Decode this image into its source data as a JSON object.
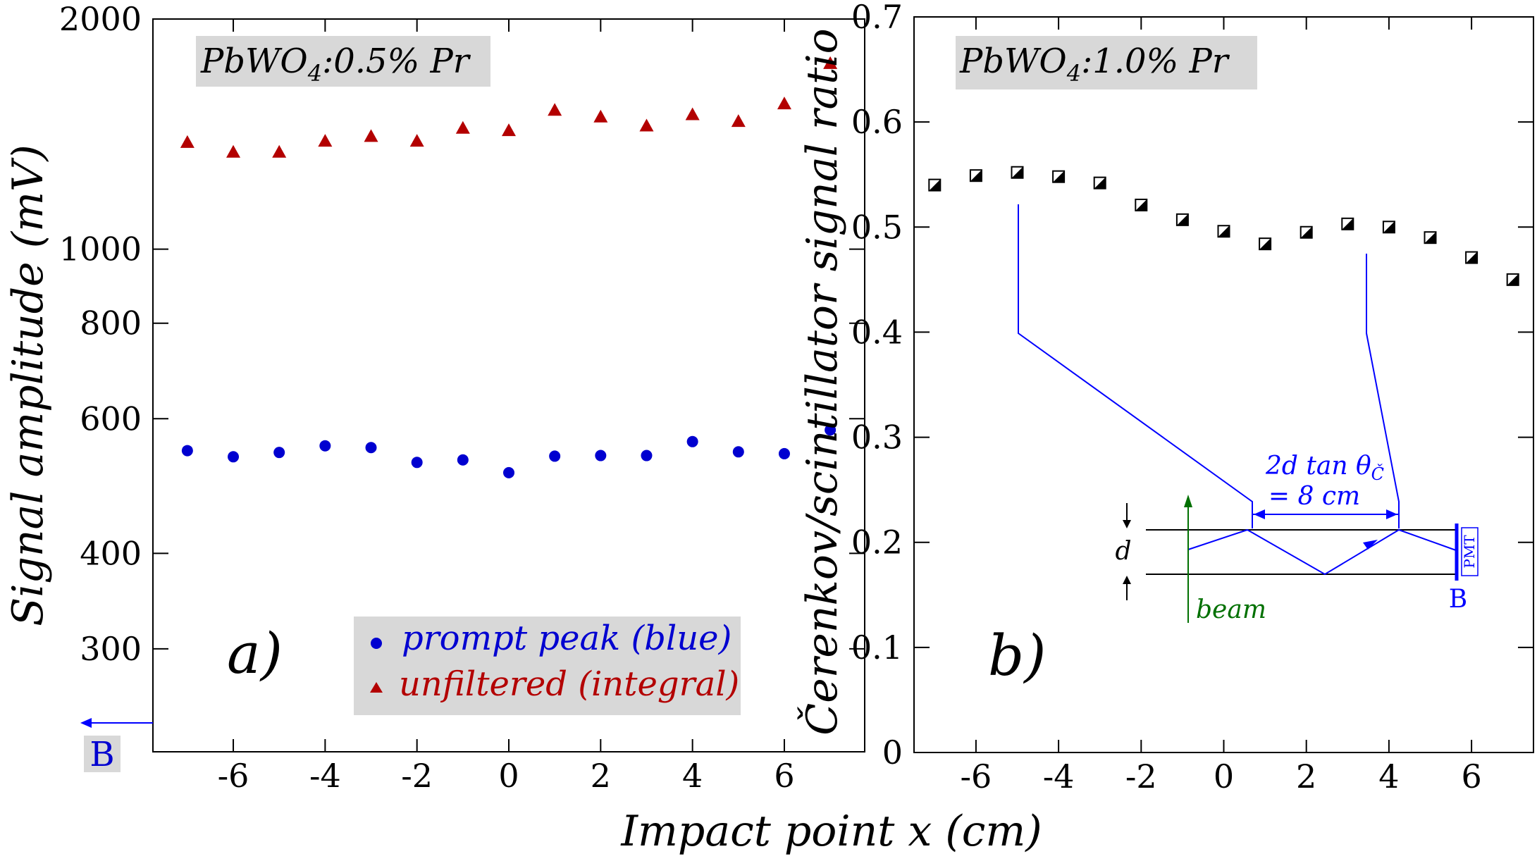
{
  "figure": {
    "xlabel": "Impact point x (cm)"
  },
  "chart_data": [
    {
      "type": "scatter",
      "panel_label": "a)",
      "sample_label": {
        "base": "PbWO",
        "sub": "4",
        "rest": ":0.5% Pr"
      },
      "ylabel": "Signal amplitude (mV)",
      "xlabel": "Impact point x (cm)",
      "yscale": "log",
      "xlim": [
        -7.75,
        7.75
      ],
      "ylim": [
        220,
        2000
      ],
      "xticks": [
        -6,
        -4,
        -2,
        0,
        2,
        4,
        6
      ],
      "xtick_labels": [
        "-6",
        "-4",
        "-2",
        "0",
        "2",
        "4",
        "6"
      ],
      "yticks": [
        300,
        400,
        600,
        800,
        1000,
        2000
      ],
      "ytick_labels": [
        "300",
        "400",
        "600",
        "800",
        "1000",
        "2000"
      ],
      "x": [
        -7,
        -6,
        -5,
        -4,
        -3,
        -2,
        -1,
        0,
        1,
        2,
        3,
        4,
        5,
        6,
        7
      ],
      "series": [
        {
          "name": "unfiltered (integral)",
          "marker": "triangle",
          "color": "#b30000",
          "values": [
            1380,
            1340,
            1340,
            1385,
            1405,
            1385,
            1440,
            1430,
            1520,
            1490,
            1450,
            1500,
            1470,
            1550,
            1750
          ]
        },
        {
          "name": "prompt peak (blue)",
          "marker": "circle",
          "color": "#0000d0",
          "values": [
            545,
            535,
            542,
            553,
            550,
            526,
            530,
            510,
            536,
            537,
            537,
            560,
            543,
            540,
            580
          ]
        }
      ],
      "legend_location": "bottom-right",
      "side_label": "B",
      "side_arrow_direction": "left"
    },
    {
      "type": "scatter",
      "panel_label": "b)",
      "sample_label": {
        "base": "PbWO",
        "sub": "4",
        "rest": ":1.0% Pr"
      },
      "ylabel": "Čerenkov/scintillator signal ratio",
      "xlabel": "Impact point x (cm)",
      "xlim": [
        -7.5,
        7.5
      ],
      "ylim": [
        0,
        0.7
      ],
      "xticks": [
        -6,
        -4,
        -2,
        0,
        2,
        4,
        6
      ],
      "xtick_labels": [
        "-6",
        "-4",
        "-2",
        "0",
        "2",
        "4",
        "6"
      ],
      "yticks": [
        0,
        0.1,
        0.2,
        0.3,
        0.4,
        0.5,
        0.6,
        0.7
      ],
      "ytick_labels": [
        "0",
        "0.1",
        "0.2",
        "0.3",
        "0.4",
        "0.5",
        "0.6",
        "0.7"
      ],
      "x": [
        -7,
        -6,
        -5,
        -4,
        -3,
        -2,
        -1,
        0,
        1,
        2,
        3,
        4,
        5,
        6,
        7
      ],
      "series": [
        {
          "marker": "half-filled-square",
          "color": "#000000",
          "values": [
            0.54,
            0.549,
            0.552,
            0.548,
            0.542,
            0.521,
            0.507,
            0.496,
            0.484,
            0.495,
            0.503,
            0.5,
            0.49,
            0.471,
            0.45
          ]
        }
      ],
      "inset": {
        "top_label": "2d tan θ",
        "top_label_sub": "Č",
        "bottom_label": "= 8 cm",
        "thickness_label": "d",
        "beam_label": "beam",
        "detector_label": "PMT",
        "end_label": "B",
        "line_color": "#0000ff",
        "beam_color": "#007000"
      }
    }
  ]
}
